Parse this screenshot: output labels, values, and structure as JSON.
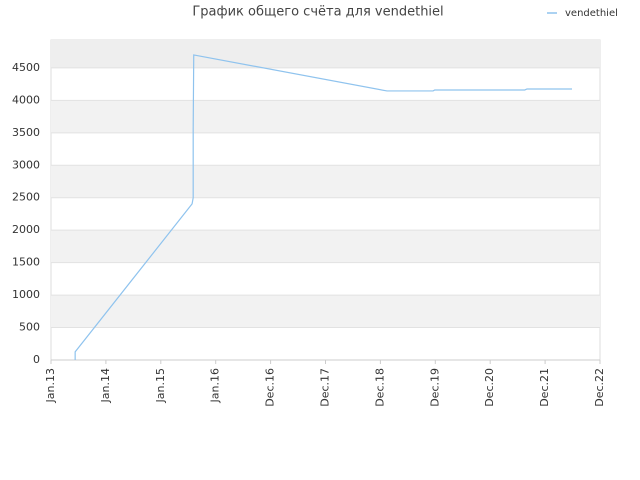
{
  "chart_data": {
    "type": "line",
    "title": "График общего счёта для vendethiel",
    "x": [
      0.44,
      0.44,
      2.57,
      2.59,
      2.59,
      2.6,
      6.12,
      6.96,
      6.99,
      8.63,
      8.67,
      9.49
    ],
    "series": [
      {
        "name": "vendethiel",
        "color": "#8fc3ee",
        "values": [
          0,
          125,
          2405,
          2500,
          3575,
          4700,
          4145,
          4145,
          4160,
          4160,
          4175,
          4175
        ]
      }
    ],
    "xlim": [
      0,
      10
    ],
    "xticks": [
      {
        "value": 0,
        "label": "Jan.13"
      },
      {
        "value": 1,
        "label": "Jan.14"
      },
      {
        "value": 2,
        "label": "Jan.15"
      },
      {
        "value": 3,
        "label": "Jan.16"
      },
      {
        "value": 4,
        "label": "Dec.16"
      },
      {
        "value": 5,
        "label": "Dec.17"
      },
      {
        "value": 6,
        "label": "Dec.18"
      },
      {
        "value": 7,
        "label": "Dec.19"
      },
      {
        "value": 8,
        "label": "Dec.20"
      },
      {
        "value": 9,
        "label": "Dec.21"
      },
      {
        "value": 10,
        "label": "Dec.22"
      }
    ],
    "ylim": [
      0,
      4930
    ],
    "yticks": [
      0,
      500,
      1000,
      1500,
      2000,
      2500,
      3000,
      3500,
      4000,
      4500
    ],
    "grid": true,
    "legend": "top-right"
  }
}
